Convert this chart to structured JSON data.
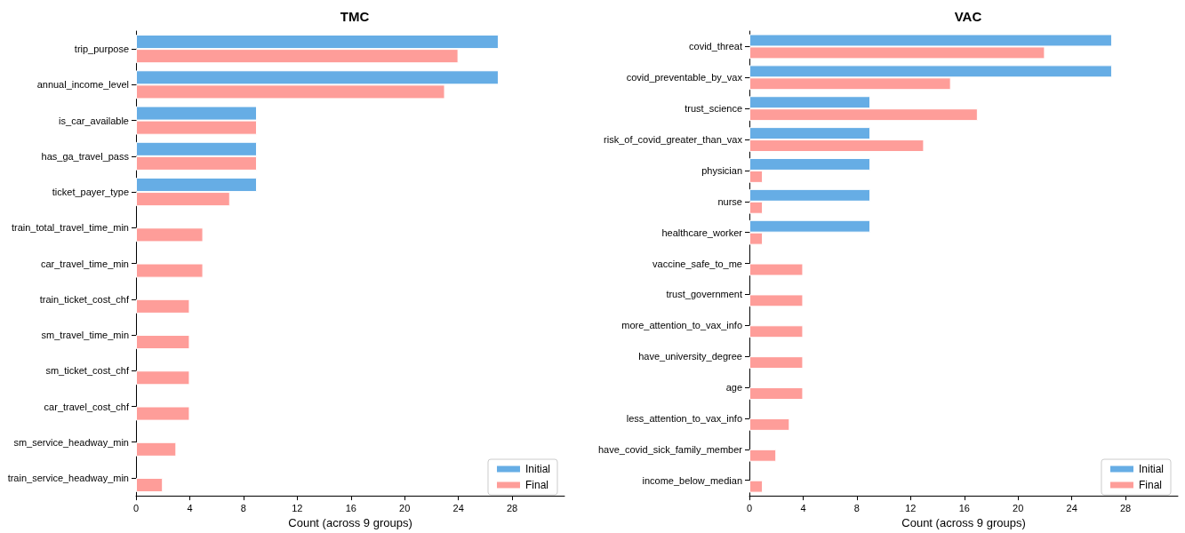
{
  "chart_data": [
    {
      "type": "bar",
      "orientation": "horizontal",
      "title": "TMC",
      "xlabel": "Count (across 9 groups)",
      "categories": [
        "trip_purpose",
        "annual_income_level",
        "is_car_available",
        "has_ga_travel_pass",
        "ticket_payer_type",
        "train_total_travel_time_min",
        "car_travel_time_min",
        "train_ticket_cost_chf",
        "sm_travel_time_min",
        "sm_ticket_cost_chf",
        "car_travel_cost_chf",
        "sm_service_headway_min",
        "train_service_headway_min"
      ],
      "series": [
        {
          "name": "Initial",
          "color": "#66ade5",
          "values": [
            27,
            27,
            9,
            9,
            9,
            0,
            0,
            0,
            0,
            0,
            0,
            0,
            0
          ]
        },
        {
          "name": "Final",
          "color": "#fe9d99",
          "values": [
            24,
            23,
            9,
            9,
            7,
            5,
            5,
            4,
            4,
            4,
            4,
            3,
            2
          ]
        }
      ],
      "xlim": [
        0,
        31.9
      ],
      "xticks": [
        0,
        4,
        8,
        12,
        16,
        20,
        24,
        28
      ],
      "legend": "bottom right"
    },
    {
      "type": "bar",
      "orientation": "horizontal",
      "title": "VAC",
      "xlabel": "Count (across 9 groups)",
      "categories": [
        "covid_threat",
        "covid_preventable_by_vax",
        "trust_science",
        "risk_of_covid_greater_than_vax",
        "physician",
        "nurse",
        "healthcare_worker",
        "vaccine_safe_to_me",
        "trust_government",
        "more_attention_to_vax_info",
        "have_university_degree",
        "age",
        "less_attention_to_vax_info",
        "have_covid_sick_family_member",
        "income_below_median"
      ],
      "series": [
        {
          "name": "Initial",
          "color": "#66ade5",
          "values": [
            27,
            27,
            9,
            9,
            9,
            9,
            9,
            0,
            0,
            0,
            0,
            0,
            0,
            0,
            0
          ]
        },
        {
          "name": "Final",
          "color": "#fe9d99",
          "values": [
            22,
            15,
            17,
            13,
            1,
            1,
            1,
            4,
            4,
            4,
            4,
            4,
            3,
            2,
            1
          ]
        }
      ],
      "xlim": [
        0,
        31.9
      ],
      "xticks": [
        0,
        4,
        8,
        12,
        16,
        20,
        24,
        28
      ],
      "legend": "bottom right"
    }
  ]
}
